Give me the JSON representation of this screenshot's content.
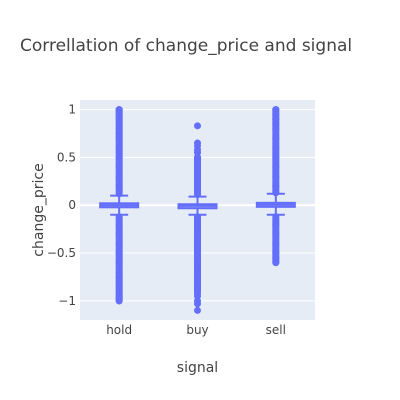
{
  "chart_data": {
    "type": "box",
    "title": "Correllation of change_price and signal",
    "xlabel": "signal",
    "ylabel": "change_price",
    "categories": [
      "hold",
      "buy",
      "sell"
    ],
    "ylim": [
      -1.2,
      1.1
    ],
    "yticks": [
      1,
      0.5,
      0,
      -0.5,
      -1
    ],
    "ytick_labels": [
      "1",
      "0.5",
      "0",
      "−0.5",
      "−1"
    ],
    "grid": true,
    "color": "#636efa",
    "plot_background": "#e5ecf6",
    "boxes": [
      {
        "category": "hold",
        "q1": -0.02,
        "median": 0.0,
        "q3": 0.02,
        "whisker_low": -0.1,
        "whisker_high": 0.1,
        "outliers_dense_ranges": [
          [
            0.12,
            1.0
          ],
          [
            -1.0,
            -0.12
          ]
        ],
        "outliers": [
          1.0,
          0.98,
          0.95,
          0.9,
          0.85,
          0.8,
          0.75,
          0.7,
          0.6,
          0.5,
          0.4,
          0.3,
          0.2,
          -0.2,
          -0.3,
          -0.4,
          -0.5,
          -0.6,
          -0.7,
          -0.75,
          -0.8,
          -0.85,
          -0.9,
          -0.95,
          -0.98,
          -1.0
        ]
      },
      {
        "category": "buy",
        "q1": -0.025,
        "median": -0.005,
        "q3": 0.01,
        "whisker_low": -0.1,
        "whisker_high": 0.09,
        "outliers_dense_ranges": [
          [
            0.11,
            0.5
          ],
          [
            -0.92,
            -0.12
          ]
        ],
        "outliers": [
          0.83,
          0.65,
          0.62,
          0.58,
          0.55,
          0.5,
          0.45,
          0.4,
          0.3,
          0.2,
          -0.2,
          -0.3,
          -0.4,
          -0.5,
          -0.6,
          -0.7,
          -0.75,
          -0.8,
          -0.85,
          -0.9,
          -0.95,
          -1.0,
          -1.03,
          -1.1
        ]
      },
      {
        "category": "sell",
        "q1": -0.01,
        "median": 0.005,
        "q3": 0.025,
        "whisker_low": -0.1,
        "whisker_high": 0.12,
        "outliers_dense_ranges": [
          [
            0.13,
            1.0
          ],
          [
            -0.6,
            -0.12
          ]
        ],
        "outliers": [
          1.0,
          0.95,
          0.9,
          0.85,
          0.8,
          0.7,
          0.6,
          0.5,
          0.4,
          0.3,
          0.2,
          -0.2,
          -0.3,
          -0.4,
          -0.5,
          -0.55,
          -0.6
        ]
      }
    ]
  }
}
